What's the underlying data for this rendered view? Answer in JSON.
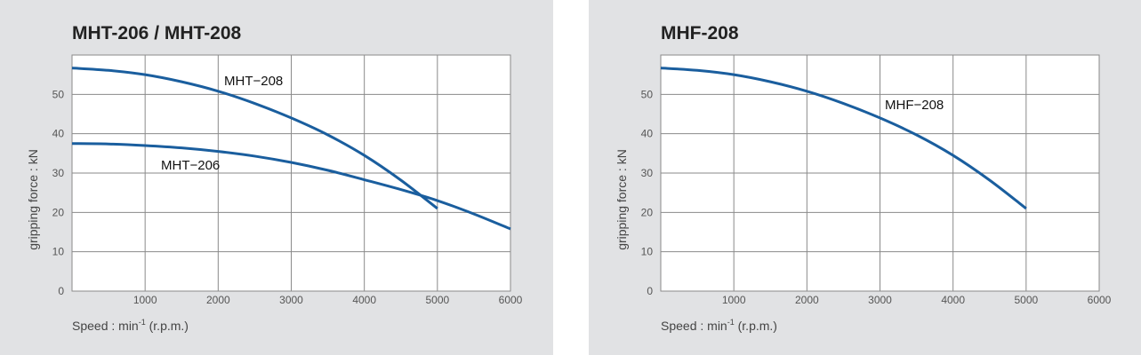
{
  "chart_data": [
    {
      "type": "line",
      "title": "MHT-206 / MHT-208",
      "xlabel": "Speed : min",
      "xlabel_sup": "-1",
      "xlabel_unit": " (r.p.m.)",
      "ylabel": "gripping force : kN",
      "xlim": [
        0,
        6000
      ],
      "ylim": [
        0,
        60
      ],
      "xticks": [
        1000,
        2000,
        3000,
        4000,
        5000,
        6000
      ],
      "yticks": [
        0,
        10,
        20,
        30,
        40,
        50
      ],
      "grid": true,
      "line_color": "#1a5e9e",
      "series": [
        {
          "name": "MHT−208",
          "x": [
            0,
            500,
            1000,
            1500,
            2000,
            2500,
            3000,
            3500,
            4000,
            4500,
            5000
          ],
          "y": [
            56.7,
            56.1,
            55.0,
            53.2,
            50.8,
            47.7,
            44.0,
            39.7,
            34.5,
            28.2,
            21.0
          ]
        },
        {
          "name": "MHT−206",
          "x": [
            0,
            500,
            1000,
            1500,
            2000,
            2500,
            3000,
            3500,
            4000,
            4500,
            5000,
            5500,
            6000
          ],
          "y": [
            37.5,
            37.4,
            37.0,
            36.4,
            35.5,
            34.3,
            32.7,
            30.7,
            28.3,
            25.8,
            23.0,
            19.6,
            15.8
          ]
        }
      ]
    },
    {
      "type": "line",
      "title": "MHF-208",
      "xlabel": "Speed : min",
      "xlabel_sup": "-1",
      "xlabel_unit": " (r.p.m.)",
      "ylabel": "gripping force : kN",
      "xlim": [
        0,
        6000
      ],
      "ylim": [
        0,
        60
      ],
      "xticks": [
        1000,
        2000,
        3000,
        4000,
        5000,
        6000
      ],
      "yticks": [
        0,
        10,
        20,
        30,
        40,
        50
      ],
      "grid": true,
      "line_color": "#1a5e9e",
      "series": [
        {
          "name": "MHF−208",
          "x": [
            0,
            500,
            1000,
            1500,
            2000,
            2500,
            3000,
            3500,
            4000,
            4500,
            5000
          ],
          "y": [
            56.7,
            56.1,
            55.0,
            53.2,
            50.8,
            47.7,
            44.0,
            39.7,
            34.5,
            28.2,
            21.0
          ]
        }
      ]
    }
  ]
}
